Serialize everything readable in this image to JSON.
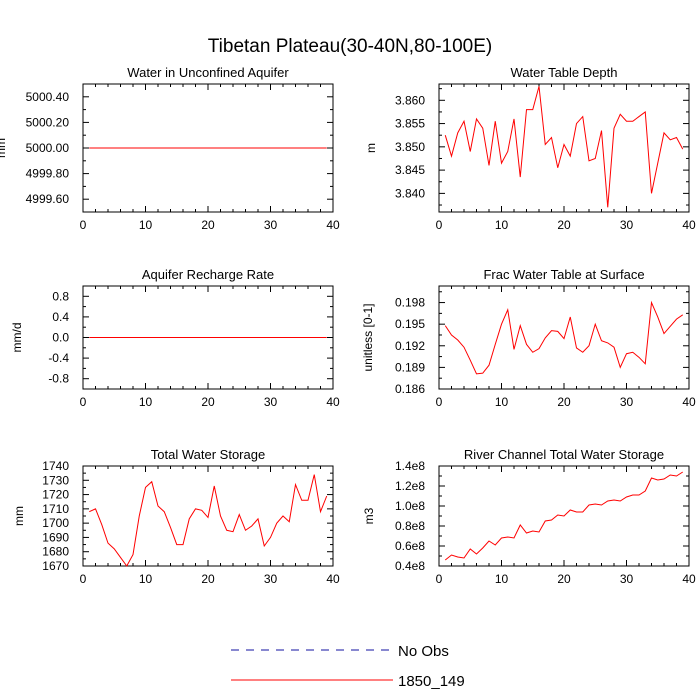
{
  "title": "Tibetan Plateau(30-40N,80-100E)",
  "colors": {
    "model": "#ff0000",
    "obs": "#1010a0",
    "axis": "#000000"
  },
  "legend": [
    {
      "label": "No Obs",
      "color": "#1010a0",
      "style": "dashed"
    },
    {
      "label": "1850_149",
      "color": "#ff0000",
      "style": "solid"
    }
  ],
  "chart_data": [
    {
      "type": "line",
      "title": "Water in Unconfined Aquifer",
      "xlabel": "",
      "ylabel": "mm",
      "xlim": [
        0,
        40
      ],
      "ylim": [
        4999.5,
        5000.5
      ],
      "xticks": [
        0,
        10,
        20,
        30,
        40
      ],
      "yticks": [
        4999.6,
        4999.8,
        5000.0,
        5000.2,
        5000.4
      ],
      "ytick_labels": [
        "4999.60",
        "4999.80",
        "5000.00",
        "5000.20",
        "5000.40"
      ],
      "x": [
        1,
        2,
        3,
        4,
        5,
        6,
        7,
        8,
        9,
        10,
        11,
        12,
        13,
        14,
        15,
        16,
        17,
        18,
        19,
        20,
        21,
        22,
        23,
        24,
        25,
        26,
        27,
        28,
        29,
        30,
        31,
        32,
        33,
        34,
        35,
        36,
        37,
        38,
        39
      ],
      "series": [
        {
          "name": "1850_149",
          "values": [
            5000,
            5000,
            5000,
            5000,
            5000,
            5000,
            5000,
            5000,
            5000,
            5000,
            5000,
            5000,
            5000,
            5000,
            5000,
            5000,
            5000,
            5000,
            5000,
            5000,
            5000,
            5000,
            5000,
            5000,
            5000,
            5000,
            5000,
            5000,
            5000,
            5000,
            5000,
            5000,
            5000,
            5000,
            5000,
            5000,
            5000,
            5000,
            5000
          ]
        }
      ]
    },
    {
      "type": "line",
      "title": "Water Table Depth",
      "xlabel": "",
      "ylabel": "m",
      "xlim": [
        0,
        40
      ],
      "ylim": [
        3.836,
        3.8635
      ],
      "xticks": [
        0,
        10,
        20,
        30,
        40
      ],
      "yticks": [
        3.84,
        3.845,
        3.85,
        3.855,
        3.86
      ],
      "ytick_labels": [
        "3.840",
        "3.845",
        "3.850",
        "3.855",
        "3.860"
      ],
      "x": [
        1,
        2,
        3,
        4,
        5,
        6,
        7,
        8,
        9,
        10,
        11,
        12,
        13,
        14,
        15,
        16,
        17,
        18,
        19,
        20,
        21,
        22,
        23,
        24,
        25,
        26,
        27,
        28,
        29,
        30,
        31,
        32,
        33,
        34,
        35,
        36,
        37,
        38,
        39
      ],
      "series": [
        {
          "name": "1850_149",
          "values": [
            3.8525,
            3.848,
            3.853,
            3.8555,
            3.849,
            3.856,
            3.854,
            3.846,
            3.8555,
            3.8465,
            3.849,
            3.856,
            3.8435,
            3.858,
            3.858,
            3.863,
            3.8505,
            3.852,
            3.8455,
            3.8505,
            3.848,
            3.855,
            3.8565,
            3.847,
            3.8475,
            3.8535,
            3.837,
            3.854,
            3.857,
            3.8555,
            3.8555,
            3.8565,
            3.8575,
            3.84,
            3.8465,
            3.853,
            3.8515,
            3.852,
            3.8495
          ]
        }
      ]
    },
    {
      "type": "line",
      "title": "Aquifer Recharge Rate",
      "xlabel": "",
      "ylabel": "mm/d",
      "xlim": [
        0,
        40
      ],
      "ylim": [
        -1.0,
        1.0
      ],
      "xticks": [
        0,
        10,
        20,
        30,
        40
      ],
      "yticks": [
        -0.8,
        -0.4,
        0.0,
        0.4,
        0.8
      ],
      "ytick_labels": [
        "-0.8",
        "-0.4",
        "0.0",
        "0.4",
        "0.8"
      ],
      "x": [
        1,
        2,
        3,
        4,
        5,
        6,
        7,
        8,
        9,
        10,
        11,
        12,
        13,
        14,
        15,
        16,
        17,
        18,
        19,
        20,
        21,
        22,
        23,
        24,
        25,
        26,
        27,
        28,
        29,
        30,
        31,
        32,
        33,
        34,
        35,
        36,
        37,
        38,
        39
      ],
      "series": [
        {
          "name": "1850_149",
          "values": [
            0,
            0,
            0,
            0,
            0,
            0,
            0,
            0,
            0,
            0,
            0,
            0,
            0,
            0,
            0,
            0,
            0,
            0,
            0,
            0,
            0,
            0,
            0,
            0,
            0,
            0,
            0,
            0,
            0,
            0,
            0,
            0,
            0,
            0,
            0,
            0,
            0,
            0,
            0
          ]
        }
      ]
    },
    {
      "type": "line",
      "title": "Frac Water Table at Surface",
      "xlabel": "",
      "ylabel": "unitless [0-1]",
      "xlim": [
        0,
        40
      ],
      "ylim": [
        0.186,
        0.2003
      ],
      "xticks": [
        0,
        10,
        20,
        30,
        40
      ],
      "yticks": [
        0.186,
        0.189,
        0.192,
        0.195,
        0.198
      ],
      "ytick_labels": [
        "0.186",
        "0.189",
        "0.192",
        "0.195",
        "0.198"
      ],
      "x": [
        1,
        2,
        3,
        4,
        5,
        6,
        7,
        8,
        9,
        10,
        11,
        12,
        13,
        14,
        15,
        16,
        17,
        18,
        19,
        20,
        21,
        22,
        23,
        24,
        25,
        26,
        27,
        28,
        29,
        30,
        31,
        32,
        33,
        34,
        35,
        36,
        37,
        38,
        39
      ],
      "series": [
        {
          "name": "1850_149",
          "values": [
            0.1948,
            0.1935,
            0.1928,
            0.1918,
            0.19,
            0.1881,
            0.1882,
            0.1893,
            0.1922,
            0.195,
            0.197,
            0.1915,
            0.1948,
            0.1922,
            0.1911,
            0.1916,
            0.1931,
            0.1941,
            0.194,
            0.193,
            0.196,
            0.1917,
            0.1911,
            0.192,
            0.195,
            0.1927,
            0.1924,
            0.1918,
            0.189,
            0.1909,
            0.1911,
            0.1904,
            0.1895,
            0.198,
            0.196,
            0.1937,
            0.1947,
            0.1957,
            0.1963
          ]
        }
      ]
    },
    {
      "type": "line",
      "title": "Total Water Storage",
      "xlabel": "",
      "ylabel": "mm",
      "xlim": [
        0,
        40
      ],
      "ylim": [
        1670,
        1740
      ],
      "xticks": [
        0,
        10,
        20,
        30,
        40
      ],
      "yticks": [
        1670,
        1680,
        1690,
        1700,
        1710,
        1720,
        1730,
        1740
      ],
      "ytick_labels": [
        "1670",
        "1680",
        "1690",
        "1700",
        "1710",
        "1720",
        "1730",
        "1740"
      ],
      "x": [
        1,
        2,
        3,
        4,
        5,
        6,
        7,
        8,
        9,
        10,
        11,
        12,
        13,
        14,
        15,
        16,
        17,
        18,
        19,
        20,
        21,
        22,
        23,
        24,
        25,
        26,
        27,
        28,
        29,
        30,
        31,
        32,
        33,
        34,
        35,
        36,
        37,
        38,
        39
      ],
      "series": [
        {
          "name": "1850_149",
          "values": [
            1708,
            1710,
            1699,
            1686,
            1682,
            1676,
            1670,
            1678,
            1705,
            1725,
            1729,
            1712,
            1708,
            1697,
            1685,
            1685,
            1703,
            1710,
            1709,
            1704,
            1726,
            1705,
            1695,
            1694,
            1706,
            1695,
            1698,
            1703,
            1684,
            1690,
            1700,
            1705,
            1701,
            1727,
            1716,
            1716,
            1734,
            1708,
            1719
          ]
        }
      ]
    },
    {
      "type": "line",
      "title": "River Channel Total Water Storage",
      "xlabel": "",
      "ylabel": "m3",
      "xlim": [
        0,
        40
      ],
      "ylim": [
        40000000,
        140000000
      ],
      "xticks": [
        0,
        10,
        20,
        30,
        40
      ],
      "yticks": [
        40000000,
        60000000,
        80000000,
        100000000,
        120000000,
        140000000
      ],
      "ytick_labels": [
        "0.4e8",
        "0.6e8",
        "0.8e8",
        "1.0e8",
        "1.2e8",
        "1.4e8"
      ],
      "x": [
        1,
        2,
        3,
        4,
        5,
        6,
        7,
        8,
        9,
        10,
        11,
        12,
        13,
        14,
        15,
        16,
        17,
        18,
        19,
        20,
        21,
        22,
        23,
        24,
        25,
        26,
        27,
        28,
        29,
        30,
        31,
        32,
        33,
        34,
        35,
        36,
        37,
        38,
        39
      ],
      "series": [
        {
          "name": "1850_149",
          "values": [
            46000000,
            51000000,
            49000000,
            48000000,
            57000000,
            52000000,
            58000000,
            65000000,
            61000000,
            68000000,
            69000000,
            68000000,
            81000000,
            73000000,
            75000000,
            74000000,
            85000000,
            86000000,
            91000000,
            90000000,
            96000000,
            94000000,
            94000000,
            101000000,
            102000000,
            101000000,
            105000000,
            106000000,
            105000000,
            109000000,
            111000000,
            111000000,
            115000000,
            128000000,
            126000000,
            127000000,
            131000000,
            130000000,
            134000000
          ]
        }
      ]
    }
  ]
}
